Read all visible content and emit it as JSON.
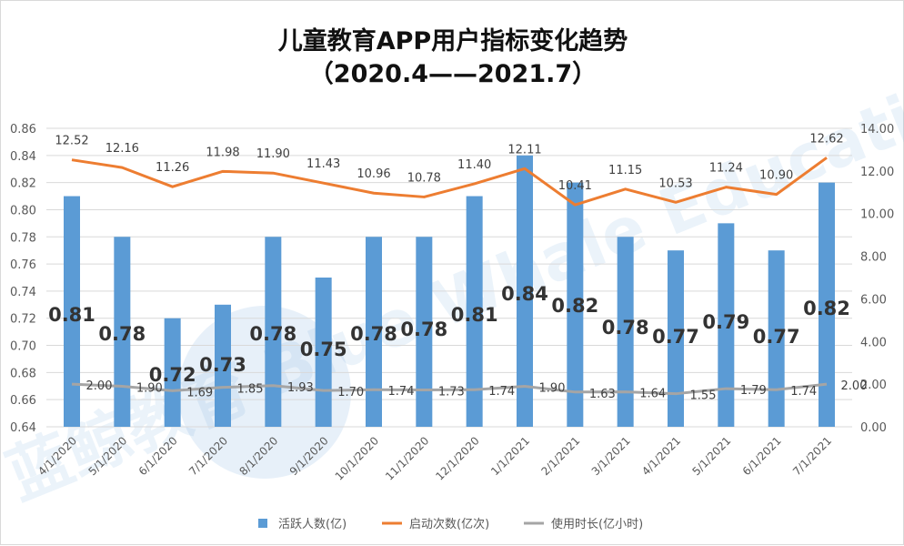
{
  "chart_data": {
    "type": "bar+line",
    "title": "儿童教育APP用户指标变化趋势",
    "subtitle": "（2020.4——2021.7）",
    "categories": [
      "4/1/2020",
      "5/1/2020",
      "6/1/2020",
      "7/1/2020",
      "8/1/2020",
      "9/1/2020",
      "10/1/2020",
      "11/1/2020",
      "12/1/2020",
      "1/1/2021",
      "2/1/2021",
      "3/1/2021",
      "4/1/2021",
      "5/1/2021",
      "6/1/2021",
      "7/1/2021"
    ],
    "y_left": {
      "range": [
        0.64,
        0.86
      ],
      "ticks": [
        "0.64",
        "0.66",
        "0.68",
        "0.70",
        "0.72",
        "0.74",
        "0.76",
        "0.78",
        "0.80",
        "0.82",
        "0.84",
        "0.86"
      ]
    },
    "y_right": {
      "range": [
        0,
        14
      ],
      "ticks": [
        "0.00",
        "2.00",
        "4.00",
        "6.00",
        "8.00",
        "10.00",
        "12.00",
        "14.00"
      ]
    },
    "grid": true,
    "legend_position": "bottom",
    "series": [
      {
        "name": "活跃人数(亿)",
        "type": "bar",
        "axis": "left",
        "color": "#5b9bd5",
        "values": [
          0.81,
          0.78,
          0.72,
          0.73,
          0.78,
          0.75,
          0.78,
          0.78,
          0.81,
          0.84,
          0.82,
          0.78,
          0.77,
          0.79,
          0.77,
          0.82
        ]
      },
      {
        "name": "启动次数(亿次)",
        "type": "line",
        "axis": "right",
        "color": "#ed7d31",
        "values": [
          12.52,
          12.16,
          11.26,
          11.98,
          11.9,
          11.43,
          10.96,
          10.78,
          11.4,
          12.11,
          10.41,
          11.15,
          10.53,
          11.24,
          10.9,
          12.62
        ]
      },
      {
        "name": "使用时长(亿小时)",
        "type": "line",
        "axis": "right",
        "color": "#a5a5a5",
        "values": [
          2.0,
          1.9,
          1.69,
          1.85,
          1.93,
          1.7,
          1.74,
          1.73,
          1.74,
          1.9,
          1.63,
          1.64,
          1.55,
          1.79,
          1.74,
          2.0
        ]
      }
    ],
    "watermark": "蓝鲸教育 Blue Whale Education"
  }
}
